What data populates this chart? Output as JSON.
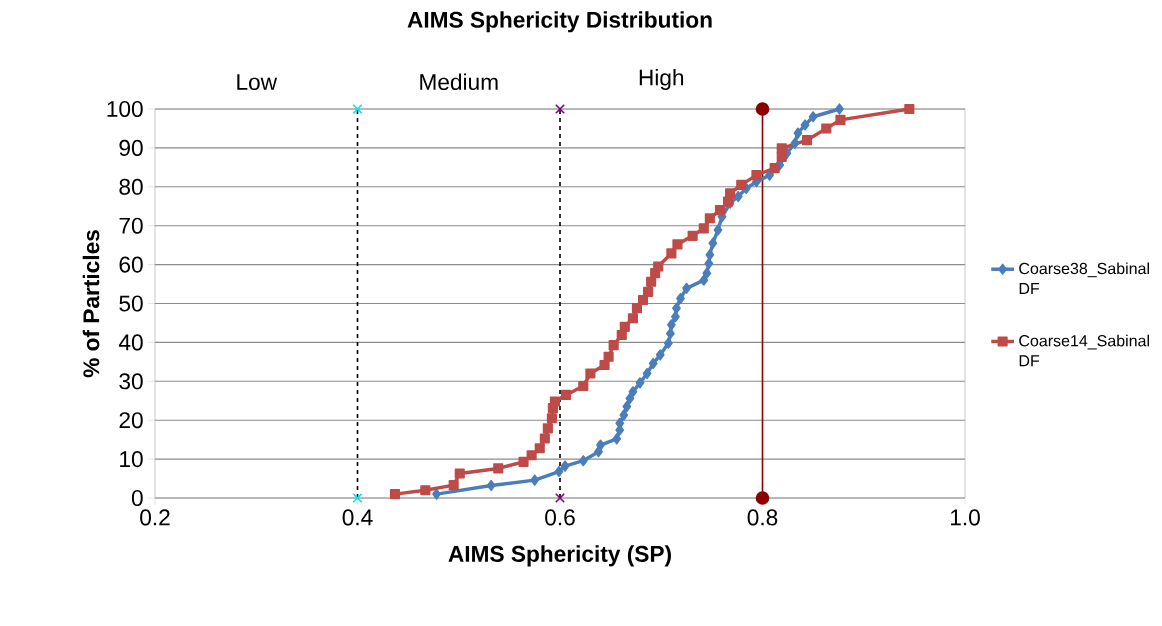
{
  "chart_data": {
    "type": "line",
    "title": "AIMS Sphericity Distribution",
    "xlabel": "AIMS Sphericity (SP)",
    "ylabel": "% of Particles",
    "xlim": [
      0.2,
      1.0
    ],
    "xticks": [
      0.2,
      0.4,
      0.6,
      0.8,
      {
        "value": 1.0,
        "label": "1.0"
      }
    ],
    "ylim": [
      0,
      100
    ],
    "yticks": [
      0,
      10,
      20,
      30,
      40,
      50,
      60,
      70,
      80,
      90,
      100
    ],
    "grid": "y",
    "legend": "right",
    "line_style": "solid",
    "annotations": [
      "Low",
      "Medium",
      "High"
    ],
    "ref_lines": [
      {
        "axis": "x",
        "value": 0.4,
        "color": "#000000",
        "line_style": "dashed"
      },
      {
        "axis": "x",
        "value": 0.6,
        "color": "#000000",
        "line_style": "dashed"
      },
      {
        "axis": "x",
        "value": 0.8,
        "color": "#8b0000",
        "line_style": "solid"
      }
    ],
    "series": [
      {
        "name": "Coarse38_Sabinal DF",
        "marker": "diamond",
        "color": "#4a7ebb",
        "x": [
          0.478,
          0.532,
          0.575,
          0.599,
          0.605,
          0.623,
          0.638,
          0.64,
          0.656,
          0.659,
          0.659,
          0.663,
          0.666,
          0.669,
          0.672,
          0.679,
          0.686,
          0.692,
          0.699,
          0.707,
          0.709,
          0.71,
          0.714,
          0.715,
          0.719,
          0.725,
          0.742,
          0.745,
          0.747,
          0.748,
          0.751,
          0.756,
          0.76,
          0.768,
          0.776,
          0.784,
          0.794,
          0.807,
          0.817,
          0.824,
          0.832,
          0.835,
          0.842,
          0.85,
          0.876
        ],
        "values": [
          1.0,
          3.2,
          4.6,
          6.8,
          8.2,
          9.6,
          11.9,
          13.6,
          15.2,
          17.5,
          19.2,
          21.3,
          23.5,
          25.6,
          27.3,
          29.6,
          32.0,
          34.6,
          36.8,
          39.8,
          42.3,
          44.5,
          46.6,
          48.8,
          51.3,
          53.9,
          56.0,
          57.8,
          60.3,
          62.5,
          65.5,
          68.9,
          72.3,
          75.8,
          77.5,
          79.6,
          81.3,
          83.0,
          85.6,
          88.6,
          91.2,
          93.8,
          95.9,
          98.0,
          100.0
        ]
      },
      {
        "name": "Coarse14_Sabinal DF",
        "marker": "square",
        "color": "#be4b48",
        "x": [
          0.437,
          0.467,
          0.495,
          0.501,
          0.539,
          0.564,
          0.572,
          0.58,
          0.585,
          0.588,
          0.592,
          0.593,
          0.595,
          0.606,
          0.623,
          0.63,
          0.644,
          0.648,
          0.653,
          0.661,
          0.664,
          0.672,
          0.676,
          0.682,
          0.687,
          0.69,
          0.694,
          0.697,
          0.71,
          0.716,
          0.731,
          0.742,
          0.748,
          0.758,
          0.766,
          0.768,
          0.779,
          0.794,
          0.812,
          0.819,
          0.819,
          0.844,
          0.863,
          0.877,
          0.945
        ],
        "values": [
          1.0,
          2.0,
          3.3,
          6.3,
          7.6,
          9.3,
          11.0,
          12.8,
          15.3,
          17.9,
          20.5,
          23.1,
          24.8,
          26.5,
          28.8,
          32.0,
          34.2,
          36.3,
          39.3,
          41.9,
          44.0,
          46.2,
          48.8,
          50.9,
          53.0,
          55.6,
          57.8,
          59.5,
          62.9,
          65.2,
          67.4,
          69.3,
          71.9,
          74.0,
          76.2,
          78.3,
          80.5,
          83.0,
          84.8,
          87.7,
          89.9,
          92.0,
          95.0,
          97.2,
          100.0
        ]
      },
      {
        "type": "scatter",
        "marker": "cross",
        "color": "#00e5ee",
        "x": [
          0.4,
          0.4
        ],
        "values": [
          0,
          100
        ]
      },
      {
        "type": "scatter",
        "marker": "cross",
        "color": "#800080",
        "x": [
          0.6,
          0.6
        ],
        "values": [
          0,
          100
        ]
      },
      {
        "type": "scatter",
        "marker": "circle",
        "color": "#8b0000",
        "x": [
          0.8,
          0.8
        ],
        "values": [
          0,
          100
        ]
      }
    ]
  }
}
